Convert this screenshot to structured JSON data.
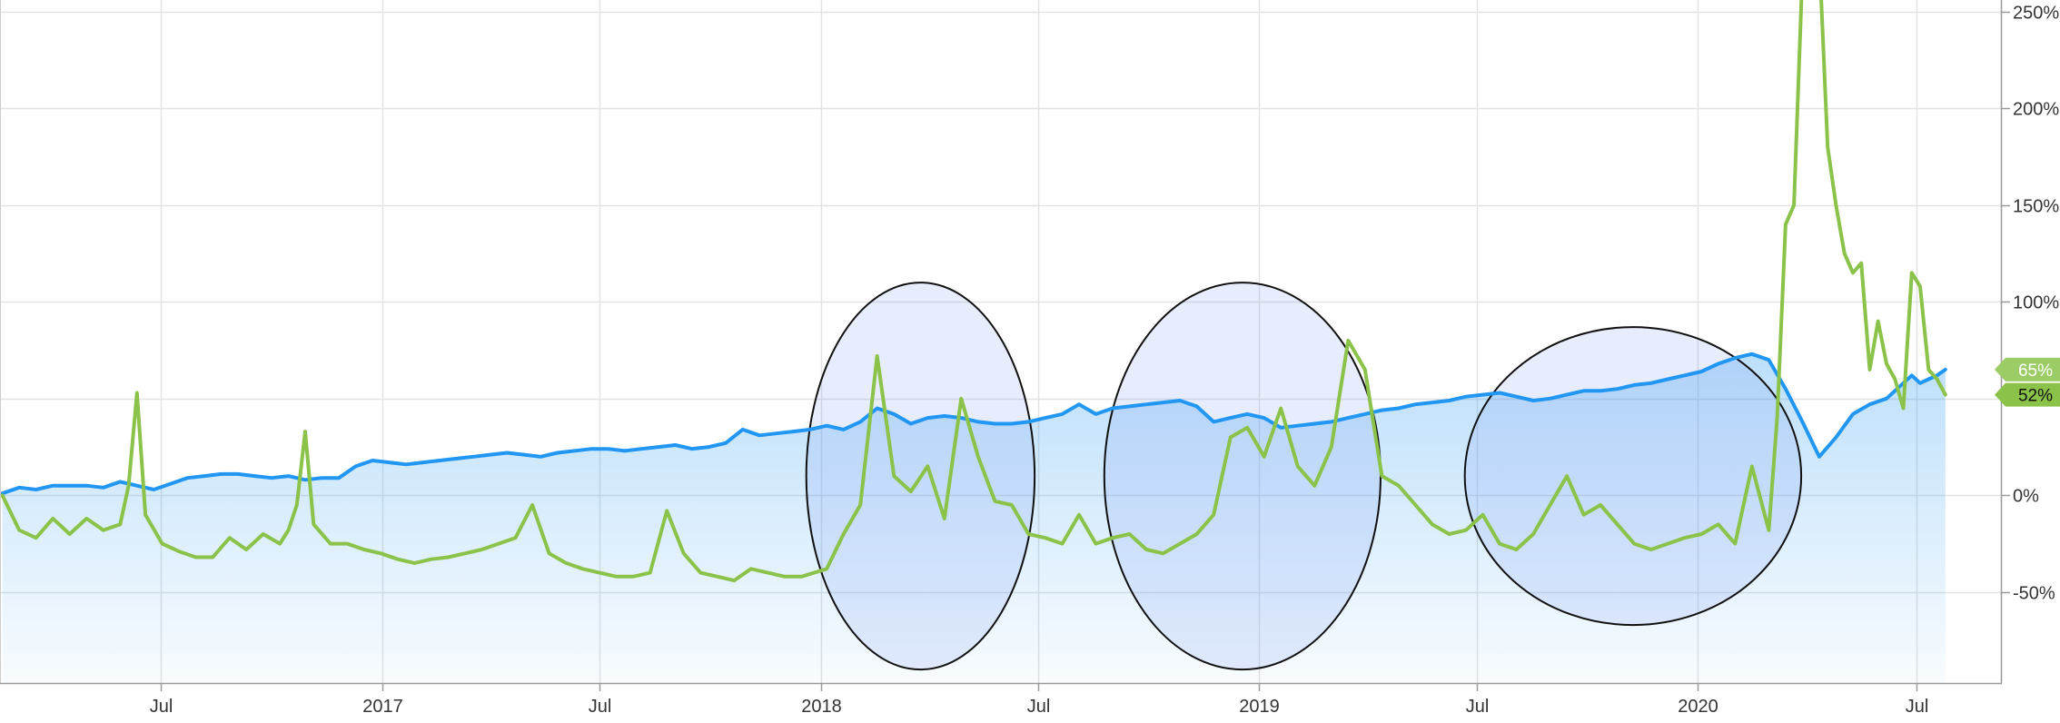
{
  "chart_data": {
    "type": "line",
    "x_axis": {
      "ticks": [
        {
          "date": "2016-07-01",
          "label": "Jul"
        },
        {
          "date": "2017-01-01",
          "label": "2017"
        },
        {
          "date": "2017-07-01",
          "label": "Jul"
        },
        {
          "date": "2018-01-01",
          "label": "2018"
        },
        {
          "date": "2018-07-01",
          "label": "Jul"
        },
        {
          "date": "2019-01-01",
          "label": "2019"
        },
        {
          "date": "2019-07-01",
          "label": "Jul"
        },
        {
          "date": "2020-01-01",
          "label": "2020"
        },
        {
          "date": "2020-07-01",
          "label": "Jul"
        }
      ],
      "range": [
        "2016-02-18",
        "2020-09-10"
      ]
    },
    "y_axis": {
      "position": "right",
      "ticks": [
        {
          "value": -50,
          "label": "-50%"
        },
        {
          "value": 0,
          "label": "0%"
        },
        {
          "value": 50,
          "label": "50%"
        },
        {
          "value": 100,
          "label": "100%"
        },
        {
          "value": 150,
          "label": "150%"
        },
        {
          "value": 200,
          "label": "200%"
        },
        {
          "value": 250,
          "label": "250%"
        }
      ],
      "range": [
        -97,
        256
      ],
      "unit": "%"
    },
    "grid": true,
    "series": [
      {
        "key": "blue",
        "color": "#2196f3",
        "fill": true,
        "end_label": "65%",
        "points": [
          [
            "2016-02-20",
            1
          ],
          [
            "2016-03-05",
            4
          ],
          [
            "2016-03-19",
            3
          ],
          [
            "2016-04-02",
            5
          ],
          [
            "2016-04-16",
            5
          ],
          [
            "2016-04-30",
            5
          ],
          [
            "2016-05-14",
            4
          ],
          [
            "2016-05-28",
            7
          ],
          [
            "2016-06-11",
            5
          ],
          [
            "2016-06-25",
            3
          ],
          [
            "2016-07-09",
            6
          ],
          [
            "2016-07-23",
            9
          ],
          [
            "2016-08-06",
            10
          ],
          [
            "2016-08-20",
            11
          ],
          [
            "2016-09-03",
            11
          ],
          [
            "2016-09-17",
            10
          ],
          [
            "2016-10-01",
            9
          ],
          [
            "2016-10-15",
            10
          ],
          [
            "2016-10-29",
            8
          ],
          [
            "2016-11-12",
            9
          ],
          [
            "2016-11-26",
            9
          ],
          [
            "2016-12-10",
            15
          ],
          [
            "2016-12-24",
            18
          ],
          [
            "2017-01-07",
            17
          ],
          [
            "2017-01-21",
            16
          ],
          [
            "2017-02-04",
            17
          ],
          [
            "2017-02-18",
            18
          ],
          [
            "2017-03-04",
            19
          ],
          [
            "2017-03-18",
            20
          ],
          [
            "2017-04-01",
            21
          ],
          [
            "2017-04-15",
            22
          ],
          [
            "2017-04-29",
            21
          ],
          [
            "2017-05-13",
            20
          ],
          [
            "2017-05-27",
            22
          ],
          [
            "2017-06-10",
            23
          ],
          [
            "2017-06-24",
            24
          ],
          [
            "2017-07-08",
            24
          ],
          [
            "2017-07-22",
            23
          ],
          [
            "2017-08-05",
            24
          ],
          [
            "2017-08-19",
            25
          ],
          [
            "2017-09-02",
            26
          ],
          [
            "2017-09-16",
            24
          ],
          [
            "2017-09-30",
            25
          ],
          [
            "2017-10-14",
            27
          ],
          [
            "2017-10-28",
            34
          ],
          [
            "2017-11-11",
            31
          ],
          [
            "2017-11-25",
            32
          ],
          [
            "2017-12-09",
            33
          ],
          [
            "2017-12-23",
            34
          ],
          [
            "2018-01-06",
            36
          ],
          [
            "2018-01-20",
            34
          ],
          [
            "2018-02-03",
            38
          ],
          [
            "2018-02-17",
            45
          ],
          [
            "2018-03-03",
            42
          ],
          [
            "2018-03-17",
            37
          ],
          [
            "2018-03-31",
            40
          ],
          [
            "2018-04-14",
            41
          ],
          [
            "2018-04-28",
            40
          ],
          [
            "2018-05-12",
            38
          ],
          [
            "2018-05-26",
            37
          ],
          [
            "2018-06-09",
            37
          ],
          [
            "2018-06-23",
            38
          ],
          [
            "2018-07-07",
            40
          ],
          [
            "2018-07-21",
            42
          ],
          [
            "2018-08-04",
            47
          ],
          [
            "2018-08-18",
            42
          ],
          [
            "2018-09-01",
            45
          ],
          [
            "2018-09-15",
            46
          ],
          [
            "2018-09-29",
            47
          ],
          [
            "2018-10-13",
            48
          ],
          [
            "2018-10-27",
            49
          ],
          [
            "2018-11-10",
            46
          ],
          [
            "2018-11-24",
            38
          ],
          [
            "2018-12-08",
            40
          ],
          [
            "2018-12-22",
            42
          ],
          [
            "2019-01-05",
            40
          ],
          [
            "2019-01-19",
            35
          ],
          [
            "2019-02-02",
            36
          ],
          [
            "2019-02-16",
            37
          ],
          [
            "2019-03-02",
            38
          ],
          [
            "2019-03-16",
            40
          ],
          [
            "2019-03-30",
            42
          ],
          [
            "2019-04-13",
            44
          ],
          [
            "2019-04-27",
            45
          ],
          [
            "2019-05-11",
            47
          ],
          [
            "2019-05-25",
            48
          ],
          [
            "2019-06-08",
            49
          ],
          [
            "2019-06-22",
            51
          ],
          [
            "2019-07-06",
            52
          ],
          [
            "2019-07-20",
            53
          ],
          [
            "2019-08-03",
            51
          ],
          [
            "2019-08-17",
            49
          ],
          [
            "2019-08-31",
            50
          ],
          [
            "2019-09-14",
            52
          ],
          [
            "2019-09-28",
            54
          ],
          [
            "2019-10-12",
            54
          ],
          [
            "2019-10-26",
            55
          ],
          [
            "2019-11-09",
            57
          ],
          [
            "2019-11-23",
            58
          ],
          [
            "2019-12-07",
            60
          ],
          [
            "2019-12-21",
            62
          ],
          [
            "2020-01-04",
            64
          ],
          [
            "2020-01-18",
            68
          ],
          [
            "2020-02-01",
            71
          ],
          [
            "2020-02-15",
            73
          ],
          [
            "2020-02-29",
            70
          ],
          [
            "2020-03-14",
            55
          ],
          [
            "2020-03-28",
            38
          ],
          [
            "2020-04-11",
            20
          ],
          [
            "2020-04-25",
            30
          ],
          [
            "2020-05-09",
            42
          ],
          [
            "2020-05-23",
            47
          ],
          [
            "2020-06-06",
            50
          ],
          [
            "2020-06-20",
            58
          ],
          [
            "2020-06-27",
            62
          ],
          [
            "2020-07-04",
            58
          ],
          [
            "2020-07-11",
            60
          ],
          [
            "2020-07-18",
            62
          ],
          [
            "2020-07-25",
            65
          ]
        ]
      },
      {
        "key": "green",
        "color": "#8bc34a",
        "fill": false,
        "end_label": "52%",
        "points": [
          [
            "2016-02-20",
            0
          ],
          [
            "2016-03-05",
            -18
          ],
          [
            "2016-03-19",
            -22
          ],
          [
            "2016-04-02",
            -12
          ],
          [
            "2016-04-16",
            -20
          ],
          [
            "2016-04-30",
            -12
          ],
          [
            "2016-05-14",
            -18
          ],
          [
            "2016-05-28",
            -15
          ],
          [
            "2016-06-04",
            5
          ],
          [
            "2016-06-11",
            53
          ],
          [
            "2016-06-18",
            -10
          ],
          [
            "2016-07-02",
            -25
          ],
          [
            "2016-07-16",
            -29
          ],
          [
            "2016-07-30",
            -32
          ],
          [
            "2016-08-13",
            -32
          ],
          [
            "2016-08-27",
            -22
          ],
          [
            "2016-09-10",
            -28
          ],
          [
            "2016-09-24",
            -20
          ],
          [
            "2016-10-08",
            -25
          ],
          [
            "2016-10-15",
            -18
          ],
          [
            "2016-10-22",
            -5
          ],
          [
            "2016-10-29",
            33
          ],
          [
            "2016-11-05",
            -15
          ],
          [
            "2016-11-19",
            -25
          ],
          [
            "2016-12-03",
            -25
          ],
          [
            "2016-12-17",
            -28
          ],
          [
            "2016-12-31",
            -30
          ],
          [
            "2017-01-14",
            -33
          ],
          [
            "2017-01-28",
            -35
          ],
          [
            "2017-02-11",
            -33
          ],
          [
            "2017-02-25",
            -32
          ],
          [
            "2017-03-11",
            -30
          ],
          [
            "2017-03-25",
            -28
          ],
          [
            "2017-04-08",
            -25
          ],
          [
            "2017-04-22",
            -22
          ],
          [
            "2017-05-06",
            -5
          ],
          [
            "2017-05-20",
            -30
          ],
          [
            "2017-06-03",
            -35
          ],
          [
            "2017-06-17",
            -38
          ],
          [
            "2017-07-01",
            -40
          ],
          [
            "2017-07-15",
            -42
          ],
          [
            "2017-07-29",
            -42
          ],
          [
            "2017-08-12",
            -40
          ],
          [
            "2017-08-26",
            -8
          ],
          [
            "2017-09-09",
            -30
          ],
          [
            "2017-09-23",
            -40
          ],
          [
            "2017-10-07",
            -42
          ],
          [
            "2017-10-21",
            -44
          ],
          [
            "2017-11-04",
            -38
          ],
          [
            "2017-11-18",
            -40
          ],
          [
            "2017-12-02",
            -42
          ],
          [
            "2017-12-16",
            -42
          ],
          [
            "2018-01-06",
            -38
          ],
          [
            "2018-01-20",
            -20
          ],
          [
            "2018-02-03",
            -5
          ],
          [
            "2018-02-17",
            72
          ],
          [
            "2018-03-03",
            10
          ],
          [
            "2018-03-17",
            2
          ],
          [
            "2018-03-31",
            15
          ],
          [
            "2018-04-14",
            -12
          ],
          [
            "2018-04-28",
            50
          ],
          [
            "2018-05-12",
            20
          ],
          [
            "2018-05-26",
            -3
          ],
          [
            "2018-06-09",
            -5
          ],
          [
            "2018-06-23",
            -20
          ],
          [
            "2018-07-07",
            -22
          ],
          [
            "2018-07-21",
            -25
          ],
          [
            "2018-08-04",
            -10
          ],
          [
            "2018-08-18",
            -25
          ],
          [
            "2018-09-01",
            -22
          ],
          [
            "2018-09-15",
            -20
          ],
          [
            "2018-09-29",
            -28
          ],
          [
            "2018-10-13",
            -30
          ],
          [
            "2018-10-27",
            -25
          ],
          [
            "2018-11-10",
            -20
          ],
          [
            "2018-11-24",
            -10
          ],
          [
            "2018-12-08",
            30
          ],
          [
            "2018-12-22",
            35
          ],
          [
            "2019-01-05",
            20
          ],
          [
            "2019-01-19",
            45
          ],
          [
            "2019-02-02",
            15
          ],
          [
            "2019-02-16",
            5
          ],
          [
            "2019-03-02",
            25
          ],
          [
            "2019-03-16",
            80
          ],
          [
            "2019-03-30",
            65
          ],
          [
            "2019-04-13",
            10
          ],
          [
            "2019-04-27",
            5
          ],
          [
            "2019-05-11",
            -5
          ],
          [
            "2019-05-25",
            -15
          ],
          [
            "2019-06-08",
            -20
          ],
          [
            "2019-06-22",
            -18
          ],
          [
            "2019-07-06",
            -10
          ],
          [
            "2019-07-20",
            -25
          ],
          [
            "2019-08-03",
            -28
          ],
          [
            "2019-08-17",
            -20
          ],
          [
            "2019-08-31",
            -5
          ],
          [
            "2019-09-14",
            10
          ],
          [
            "2019-09-28",
            -10
          ],
          [
            "2019-10-12",
            -5
          ],
          [
            "2019-10-26",
            -15
          ],
          [
            "2019-11-09",
            -25
          ],
          [
            "2019-11-23",
            -28
          ],
          [
            "2019-12-07",
            -25
          ],
          [
            "2019-12-21",
            -22
          ],
          [
            "2020-01-04",
            -20
          ],
          [
            "2020-01-18",
            -15
          ],
          [
            "2020-02-01",
            -25
          ],
          [
            "2020-02-15",
            15
          ],
          [
            "2020-02-29",
            -18
          ],
          [
            "2020-03-07",
            40
          ],
          [
            "2020-03-14",
            140
          ],
          [
            "2020-03-21",
            150
          ],
          [
            "2020-03-28",
            270
          ],
          [
            "2020-04-04",
            280
          ],
          [
            "2020-04-11",
            280
          ],
          [
            "2020-04-18",
            180
          ],
          [
            "2020-04-25",
            150
          ],
          [
            "2020-05-02",
            125
          ],
          [
            "2020-05-09",
            115
          ],
          [
            "2020-05-16",
            120
          ],
          [
            "2020-05-23",
            65
          ],
          [
            "2020-05-30",
            90
          ],
          [
            "2020-06-06",
            68
          ],
          [
            "2020-06-13",
            60
          ],
          [
            "2020-06-20",
            45
          ],
          [
            "2020-06-27",
            115
          ],
          [
            "2020-07-04",
            108
          ],
          [
            "2020-07-11",
            65
          ],
          [
            "2020-07-18",
            60
          ],
          [
            "2020-07-25",
            52
          ]
        ]
      }
    ],
    "annotations": [
      {
        "shape": "ellipse",
        "center_date": "2018-03-25",
        "center_value": 10,
        "half_width_days": 95,
        "half_height_value": 100
      },
      {
        "shape": "ellipse",
        "center_date": "2018-12-18",
        "center_value": 10,
        "half_width_days": 115,
        "half_height_value": 100
      },
      {
        "shape": "ellipse",
        "center_date": "2019-11-08",
        "center_value": 10,
        "half_width_days": 140,
        "half_height_value": 77
      }
    ]
  }
}
